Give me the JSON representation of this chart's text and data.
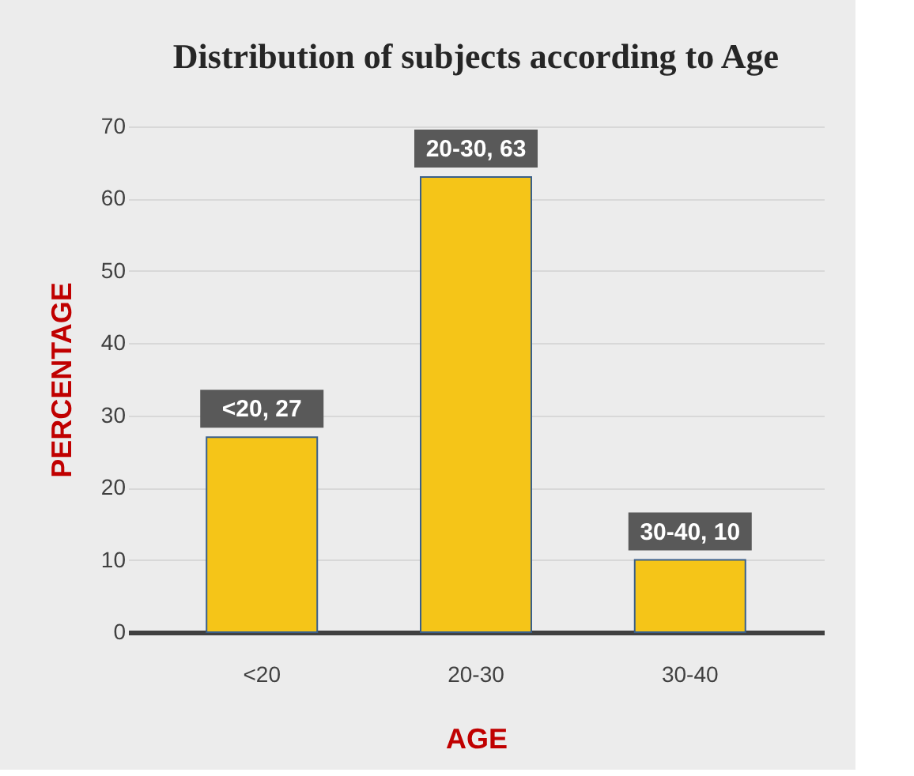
{
  "chart_data": {
    "type": "bar",
    "title": "Distribution of subjects according to Age",
    "xlabel": "AGE",
    "ylabel": "PERCENTAGE",
    "categories": [
      "<20",
      "20-30",
      "30-40"
    ],
    "values": [
      27,
      63,
      10
    ],
    "value_labels": [
      "<20, 27",
      "20-30, 63",
      "30-40, 10"
    ],
    "color": "#f5c518",
    "ylim": [
      0,
      70
    ],
    "yticks": [
      0,
      10,
      20,
      30,
      40,
      50,
      60,
      70
    ],
    "grid": "y"
  }
}
